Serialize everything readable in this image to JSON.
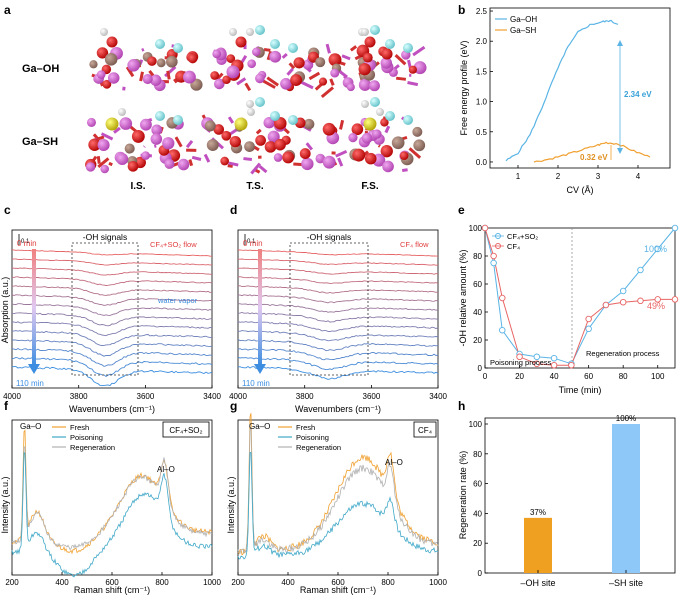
{
  "panel_labels": [
    "a",
    "b",
    "c",
    "d",
    "e",
    "f",
    "g",
    "h"
  ],
  "panel_a": {
    "row_labels": [
      "Ga–OH",
      "Ga–SH"
    ],
    "column_labels": [
      "I.S.",
      "T.S.",
      "F.S."
    ]
  },
  "chart_data": [
    {
      "panel": "b",
      "type": "line",
      "xlabel": "CV (Å)",
      "ylabel": "Free energy profile (eV)",
      "xlim": [
        0.3,
        4.8
      ],
      "ylim": [
        -0.1,
        2.55
      ],
      "xticks": [
        "1",
        "2",
        "3",
        "4"
      ],
      "yticks": [
        "0.0",
        "0.5",
        "1.0",
        "1.5",
        "2.0",
        "2.5"
      ],
      "series": [
        {
          "name": "Ga–OH",
          "color": "#5ab4e5",
          "x": [
            0.7,
            1.0,
            1.3,
            1.6,
            1.9,
            2.2,
            2.5,
            2.8,
            3.1,
            3.3,
            3.5
          ],
          "y": [
            0.02,
            0.15,
            0.45,
            0.9,
            1.4,
            1.85,
            2.15,
            2.27,
            2.32,
            2.34,
            2.28
          ]
        },
        {
          "name": "Ga–SH",
          "color": "#f0a030",
          "x": [
            1.4,
            1.8,
            2.2,
            2.6,
            3.0,
            3.2,
            3.5,
            3.9,
            4.3
          ],
          "y": [
            0.0,
            0.05,
            0.12,
            0.2,
            0.28,
            0.32,
            0.3,
            0.18,
            0.08
          ]
        }
      ],
      "annotations": [
        "2.34 eV",
        "0.32 eV"
      ]
    },
    {
      "panel": "c",
      "type": "line",
      "xlabel": "Wavenumbers (cm⁻¹)",
      "ylabel": "Absorption (a.u.)",
      "xticks": [
        "4000",
        "3800",
        "3600",
        "3400"
      ],
      "box_label": "-OH signals",
      "scale_label": "0.1",
      "start_label": "0 min",
      "end_label": "110 min",
      "flow_label": "CF₄+SO₂ flow",
      "vapor_label": "water vapor",
      "curve_count": 14
    },
    {
      "panel": "d",
      "type": "line",
      "xlabel": "Wavenumbers (cm⁻¹)",
      "xticks": [
        "4000",
        "3800",
        "3600",
        "3400"
      ],
      "box_label": "-OH signals",
      "scale_label": "0.1",
      "start_label": "0 min",
      "end_label": "110 min",
      "flow_label": "CF₄ flow",
      "curve_count": 14
    },
    {
      "panel": "e",
      "type": "scatter",
      "xlabel": "Time (min)",
      "ylabel": "-OH relative amount (%)",
      "xlim": [
        0,
        110
      ],
      "ylim": [
        0,
        100
      ],
      "xticks": [
        "0",
        "20",
        "40",
        "60",
        "80",
        "100"
      ],
      "yticks": [
        "0",
        "20",
        "40",
        "60",
        "80",
        "100"
      ],
      "series": [
        {
          "name": "CF₄+SO₂",
          "color": "#5ab4e5",
          "x": [
            0,
            5,
            10,
            20,
            30,
            40,
            50,
            60,
            70,
            80,
            90,
            100,
            110
          ],
          "y": [
            100,
            75,
            27,
            10,
            8,
            7,
            3,
            28,
            45,
            55,
            70,
            85,
            100
          ]
        },
        {
          "name": "CF₄",
          "color": "#e86464",
          "x": [
            0,
            5,
            10,
            20,
            30,
            40,
            50,
            60,
            70,
            80,
            90,
            100,
            110
          ],
          "y": [
            100,
            80,
            50,
            8,
            3,
            2,
            2,
            35,
            45,
            47,
            48,
            49,
            49
          ]
        }
      ],
      "region_labels": [
        "Poisoning process",
        "Regeneration process"
      ],
      "end_labels": [
        "100%",
        "49%"
      ]
    },
    {
      "panel": "f",
      "type": "line",
      "xlabel": "Raman shift (cm⁻¹)",
      "ylabel": "Intensity (a.u.)",
      "xticks": [
        "200",
        "400",
        "600",
        "800",
        "1000"
      ],
      "legend": [
        "Fresh",
        "Poisoning",
        "Regeneration"
      ],
      "box_label": "CF₄+SO₂",
      "peak_labels": [
        "Ga–O",
        "Al–O"
      ]
    },
    {
      "panel": "g",
      "type": "line",
      "xlabel": "Raman shift (cm⁻¹)",
      "ylabel": "Intensity (a.u.)",
      "xticks": [
        "200",
        "400",
        "600",
        "800",
        "1000"
      ],
      "legend": [
        "Fresh",
        "Poisoning",
        "Regeneration"
      ],
      "box_label": "CF₄",
      "peak_labels": [
        "Ga–O",
        "Al–O"
      ]
    },
    {
      "panel": "h",
      "type": "bar",
      "ylabel": "Regeneration rate (%)",
      "ylim": [
        0,
        100
      ],
      "yticks": [
        "0",
        "20",
        "40",
        "60",
        "80",
        "100"
      ],
      "categories": [
        "–OH site",
        "–SH site"
      ],
      "values": [
        37,
        100
      ],
      "value_labels": [
        "37%",
        "100%"
      ],
      "colors": [
        "#f0a020",
        "#8ec8f8"
      ]
    }
  ]
}
